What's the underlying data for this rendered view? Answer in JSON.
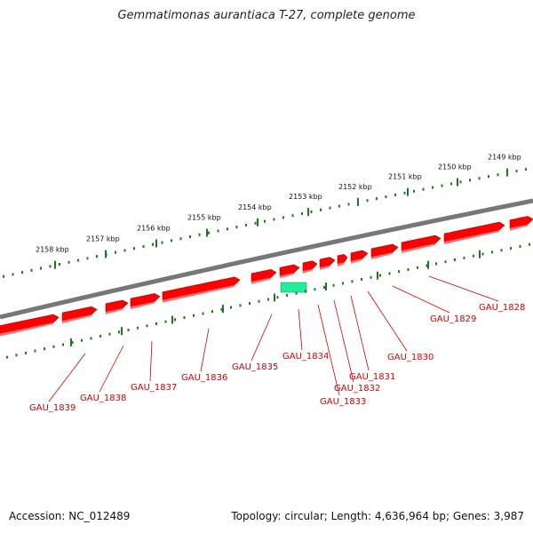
{
  "title": "Gemmatimonas aurantiaca T-27, complete genome",
  "footer": {
    "accession": "Accession: NC_012489",
    "summary": "Topology: circular; Length: 4,636,964 bp; Genes: 3,987"
  },
  "colors": {
    "gene_forward": "#ff0000",
    "gene_highlight": "#22ee99",
    "backbone": "#777777",
    "ticks": "#1a7a1a",
    "label": "#d00000"
  },
  "ruler": {
    "labels": [
      "2158 kbp",
      "2157 kbp",
      "2156 kbp",
      "2155 kbp",
      "2154 kbp",
      "2153 kbp",
      "2152 kbp",
      "2151 kbp",
      "2150 kbp",
      "2149 kbp"
    ]
  },
  "genes": [
    {
      "label": "GAU_1839"
    },
    {
      "label": "GAU_1838"
    },
    {
      "label": "GAU_1837"
    },
    {
      "label": "GAU_1836"
    },
    {
      "label": "GAU_1835"
    },
    {
      "label": "GAU_1834"
    },
    {
      "label": "GAU_1833"
    },
    {
      "label": "GAU_1832"
    },
    {
      "label": "GAU_1831"
    },
    {
      "label": "GAU_1830"
    },
    {
      "label": "GAU_1829"
    },
    {
      "label": "GAU_1828"
    }
  ]
}
